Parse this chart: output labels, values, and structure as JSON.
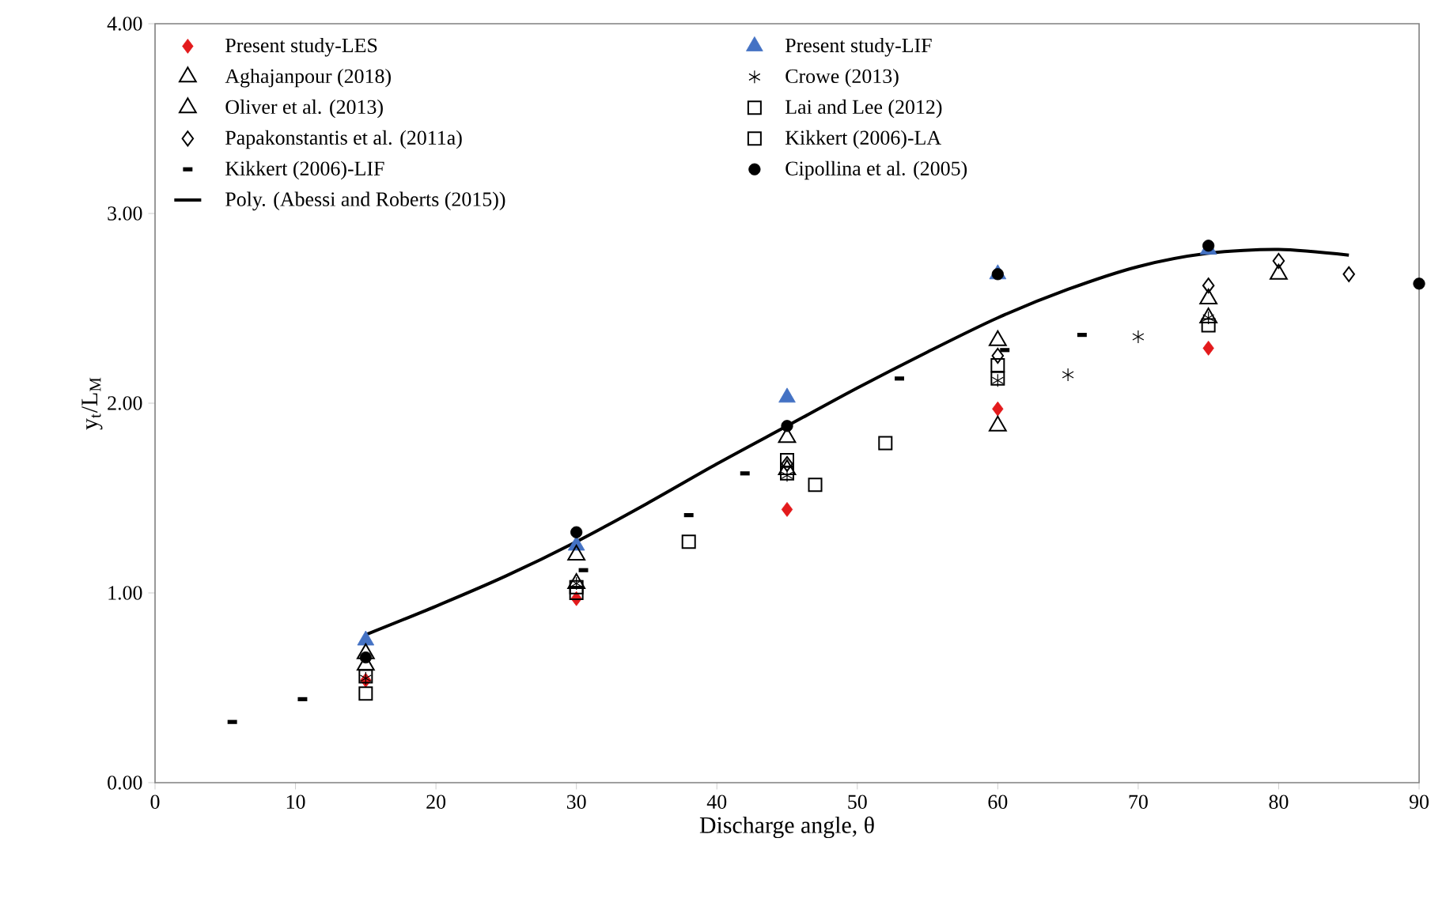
{
  "chart_data": {
    "type": "scatter",
    "xlabel": "Discharge angle, θ",
    "ylabel": "y$_{t}$/L$_{M}$",
    "xlim": [
      0,
      90
    ],
    "ylim": [
      0,
      4
    ],
    "xticks": [
      0,
      10,
      20,
      30,
      40,
      50,
      60,
      70,
      80,
      90
    ],
    "yticks": [
      {
        "value": 0,
        "label": "0.00"
      },
      {
        "value": 1,
        "label": "1.00"
      },
      {
        "value": 2,
        "label": "2.00"
      },
      {
        "value": 3,
        "label": "3.00"
      },
      {
        "value": 4,
        "label": "4.00"
      }
    ],
    "grid": false,
    "legend": "top",
    "series": [
      {
        "name": "Present study-LES",
        "color": "#e31a1c",
        "marker": "diamond",
        "x": [
          15,
          30,
          45,
          60,
          75
        ],
        "values": [
          0.54,
          0.97,
          1.44,
          1.97,
          2.29
        ]
      },
      {
        "name": "Present study-LIF",
        "color": "#4472c4",
        "marker": "triangle",
        "x": [
          15,
          30,
          45,
          60,
          75
        ],
        "values": [
          0.75,
          1.25,
          2.03,
          2.68,
          2.81
        ]
      },
      {
        "name": "Aghajanpour (2018)",
        "color": "#000000",
        "marker": "triangle",
        "x": [
          15,
          30,
          45,
          60,
          75
        ],
        "values": [
          0.62,
          1.05,
          1.65,
          1.88,
          2.45
        ]
      },
      {
        "name": "Crowe (2013)",
        "color": "#000000",
        "marker": "cross",
        "x": [
          15,
          30,
          45,
          60,
          65,
          70,
          75
        ],
        "values": [
          0.55,
          1.05,
          1.62,
          2.12,
          2.15,
          2.35,
          2.45
        ]
      },
      {
        "name": "Oliver et al. (2013)",
        "color": "#000000",
        "marker": "triangle",
        "x": [
          15,
          30,
          45,
          60,
          75,
          80
        ],
        "values": [
          0.68,
          1.2,
          1.82,
          2.33,
          2.55,
          2.68
        ]
      },
      {
        "name": "Lai and Lee (2012)",
        "color": "#000000",
        "marker": "square",
        "x": [
          15,
          30,
          38,
          45,
          52,
          60
        ],
        "values": [
          0.47,
          1.03,
          1.27,
          1.7,
          1.79,
          2.2
        ]
      },
      {
        "name": "Papakonstantis et al. (2011a)",
        "color": "#000000",
        "marker": "diamond",
        "x": [
          45,
          60,
          75,
          80,
          85
        ],
        "values": [
          1.68,
          2.25,
          2.62,
          2.75,
          2.68
        ]
      },
      {
        "name": "Kikkert (2006)-LA",
        "color": "#000000",
        "marker": "square",
        "x": [
          15,
          30,
          45,
          47,
          60,
          75
        ],
        "values": [
          0.56,
          1.0,
          1.63,
          1.57,
          2.13,
          2.41
        ]
      },
      {
        "name": "Kikkert (2006)-LIF",
        "color": "#000000",
        "x": [
          5.5,
          10.5,
          30.5,
          38,
          42,
          53,
          60.5,
          66
        ],
        "values": [
          0.32,
          0.44,
          1.12,
          1.41,
          1.63,
          2.13,
          2.28,
          2.36
        ]
      },
      {
        "name": "Cipollina et al. (2005)",
        "color": "#000000",
        "marker": "circle",
        "x": [
          15,
          30,
          45,
          60,
          75,
          90
        ],
        "values": [
          0.66,
          1.32,
          1.88,
          2.68,
          2.83,
          2.63
        ]
      },
      {
        "name": "Poly. (Abessi and Roberts (2015))",
        "type": "line",
        "color": "#000000",
        "marker": "none",
        "x": [
          15,
          20,
          25,
          30,
          35,
          40,
          45,
          50,
          55,
          60,
          65,
          70,
          75,
          80,
          85
        ],
        "values": [
          0.78,
          0.93,
          1.09,
          1.27,
          1.47,
          1.68,
          1.88,
          2.08,
          2.27,
          2.45,
          2.6,
          2.72,
          2.79,
          2.81,
          2.78
        ]
      }
    ]
  }
}
